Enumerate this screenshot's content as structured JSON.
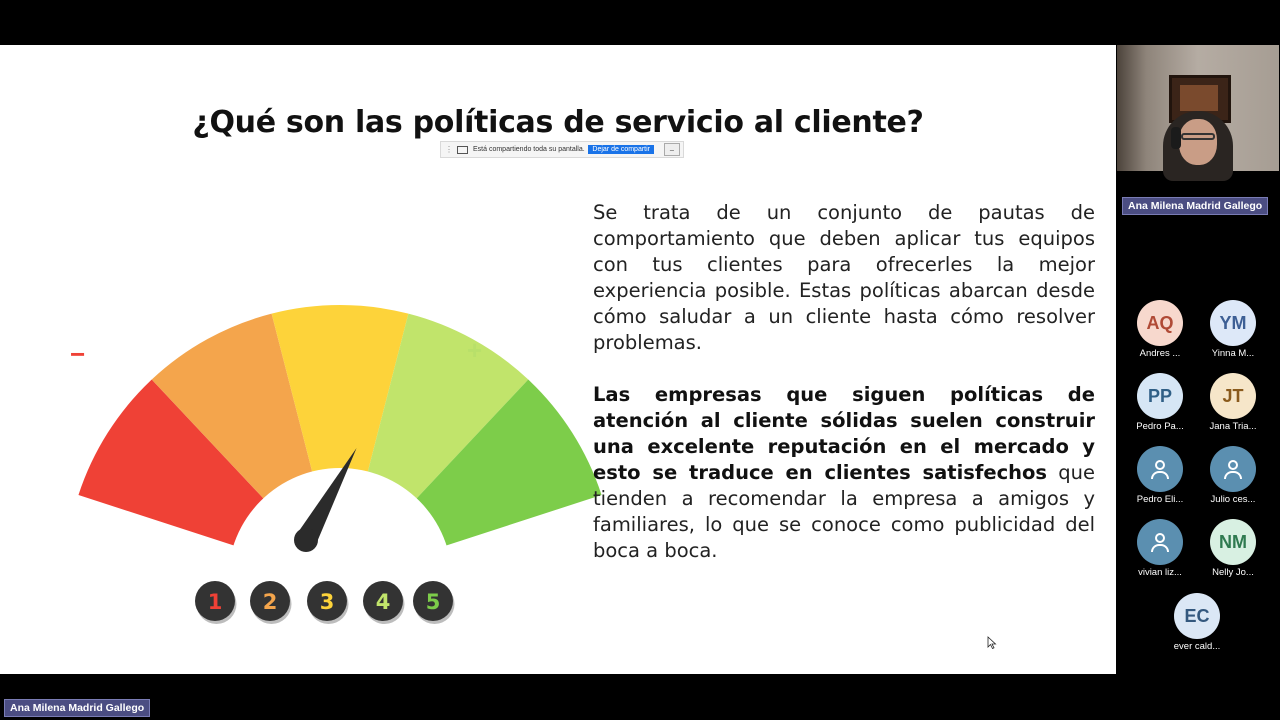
{
  "slide": {
    "title": "¿Qué son las políticas de servicio al cliente?",
    "paragraph1": "Se trata de un conjunto de pautas de comportamiento que deben aplicar tus equipos con tus clientes para ofrecerles la mejor experiencia posible. Estas políticas abarcan desde cómo saludar a un cliente hasta cómo resolver problemas.",
    "paragraph2_bold": "Las empresas que siguen políticas de atención al cliente sólidas suelen construir una excelente reputación en el mercado y esto se traduce en clientes satisfechos",
    "paragraph2_rest": " que tienden a recomendar la empresa a amigos y familiares, lo que se conoce como publicidad del boca a boca."
  },
  "gauge": {
    "minus_symbol": "−",
    "plus_symbol": "+",
    "buttons": [
      "1",
      "2",
      "3",
      "4",
      "5"
    ],
    "button_colors": [
      "#ef4136",
      "#f4a54c",
      "#fdd33a",
      "#c1e46b",
      "#7dcd4a"
    ],
    "segment_colors": [
      "#ef4136",
      "#f4a54c",
      "#fdd33a",
      "#c1e46b",
      "#7dcd4a"
    ],
    "needle_level": 4
  },
  "share_bar": {
    "message": "Está compartiendo toda su pantalla.",
    "stop_button": "Dejar de compartir",
    "hide_button": "_"
  },
  "self_view": {
    "name": "Ana Milena Madrid Gallego"
  },
  "bottom_name": "Ana Milena Madrid Gallego",
  "participants": [
    {
      "initials": "AQ",
      "name": "Andres ...",
      "bg": "#f7d8cd",
      "fg": "#b04a36"
    },
    {
      "initials": "YM",
      "name": "Yinna M...",
      "bg": "#dde8f8",
      "fg": "#3d5f95"
    },
    {
      "initials": "PP",
      "name": "Pedro Pa...",
      "bg": "#d6e6f5",
      "fg": "#2f5f86"
    },
    {
      "initials": "JT",
      "name": "Jana Tria...",
      "bg": "#f6e6c9",
      "fg": "#8a5a1c"
    },
    {
      "initials": "",
      "name": "Pedro Eli...",
      "bg": "#5b8fb0",
      "fg": "#ffffff",
      "icon": "person-icon"
    },
    {
      "initials": "",
      "name": "Julio ces...",
      "bg": "#5b8fb0",
      "fg": "#ffffff",
      "icon": "person-icon"
    },
    {
      "initials": "",
      "name": "vivian liz...",
      "bg": "#5b8fb0",
      "fg": "#ffffff",
      "icon": "person-icon"
    },
    {
      "initials": "NM",
      "name": "Nelly Jo...",
      "bg": "#d8f0e2",
      "fg": "#2f7a50"
    },
    {
      "initials": "EC",
      "name": "ever cald...",
      "bg": "#dbe7f5",
      "fg": "#34587e"
    }
  ]
}
